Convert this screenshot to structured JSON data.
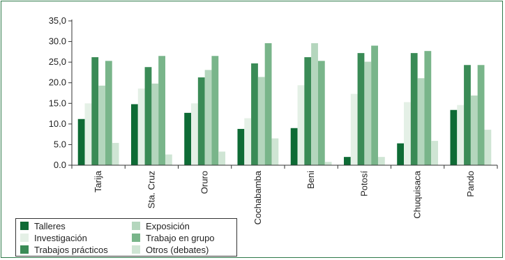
{
  "chart_data": {
    "type": "bar",
    "categories": [
      "Tarija",
      "Sta. Cruz",
      "Oruro",
      "Cochabamba",
      "Beni",
      "Potosí",
      "Chuquisaca",
      "Pando"
    ],
    "ylim": [
      0,
      35
    ],
    "yticks": [
      "0.0",
      "5.0",
      "10.0",
      "15.0",
      "20.0",
      "25,0",
      "30.0",
      "35,0"
    ],
    "grid": false,
    "legend_position": "bottom-left",
    "series": [
      {
        "name": "Talleres",
        "color": "#0e6b35",
        "values": [
          11.2,
          14.8,
          12.7,
          8.8,
          9.0,
          2.0,
          5.3,
          13.4
        ]
      },
      {
        "name": "Investigación",
        "color": "#e4f0e6",
        "values": [
          15.0,
          18.6,
          15.0,
          11.4,
          19.4,
          17.3,
          15.3,
          14.6
        ]
      },
      {
        "name": "Trabajos prácticos",
        "color": "#3a8b56",
        "values": [
          26.2,
          23.8,
          21.3,
          24.7,
          26.2,
          27.2,
          27.2,
          24.3
        ]
      },
      {
        "name": "Exposición",
        "color": "#b4d6bd",
        "values": [
          19.3,
          19.8,
          23.1,
          21.4,
          29.6,
          25.1,
          21.1,
          16.9
        ]
      },
      {
        "name": "Trabajo en grupo",
        "color": "#79b58a",
        "values": [
          25.3,
          26.5,
          26.5,
          29.6,
          25.3,
          29.0,
          27.7,
          24.3
        ]
      },
      {
        "name": "Otros (debates)",
        "color": "#cfe5d4",
        "values": [
          5.4,
          2.6,
          3.3,
          6.5,
          0.8,
          2.0,
          5.9,
          8.6
        ]
      }
    ]
  }
}
